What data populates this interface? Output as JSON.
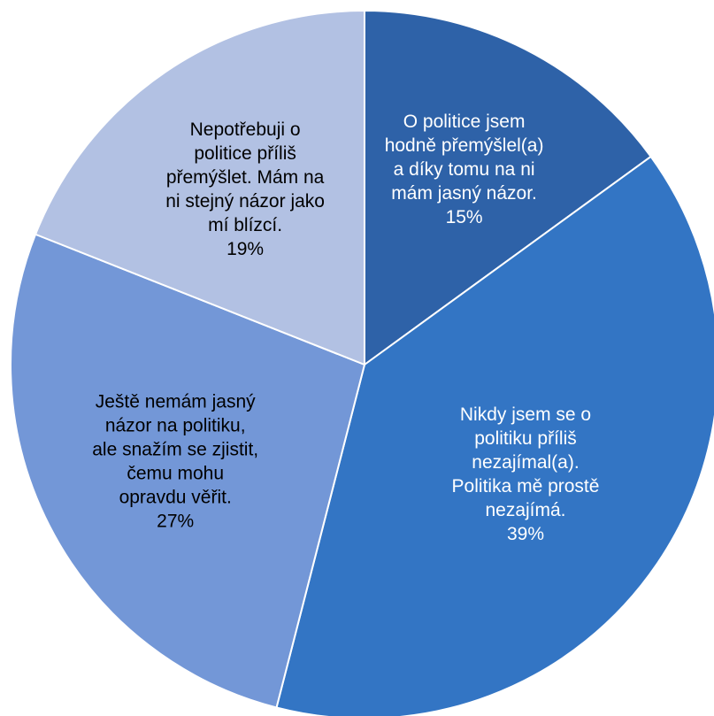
{
  "chart_data": {
    "type": "pie",
    "title": "",
    "start_angle_deg": 0,
    "direction": "clockwise",
    "slices": [
      {
        "label_lines": [
          "O politice jsem",
          "hodně přemýšlel(a)",
          "a díky tomu na ni",
          "mám jasný názor."
        ],
        "value": 15,
        "value_label": "15%",
        "color": "#2E62A8",
        "text_color": "#ffffff"
      },
      {
        "label_lines": [
          "Nikdy jsem se o",
          "politiku příliš",
          "nezajímal(a).",
          "Politika mě prostě",
          "nezajímá."
        ],
        "value": 39,
        "value_label": "39%",
        "color": "#3375C4",
        "text_color": "#ffffff"
      },
      {
        "label_lines": [
          "Ještě nemám jasný",
          "názor na politiku,",
          "ale snažím se zjistit,",
          "čemu mohu",
          "opravdu věřit."
        ],
        "value": 27,
        "value_label": "27%",
        "color": "#7397D7",
        "text_color": "#000000"
      },
      {
        "label_lines": [
          "Nepotřebuji o",
          "politice příliš",
          "přemýšlet. Mám na",
          "ni stejný názor jako",
          "mí blízcí."
        ],
        "value": 19,
        "value_label": "19%",
        "color": "#B2C1E3",
        "text_color": "#000000"
      }
    ]
  }
}
